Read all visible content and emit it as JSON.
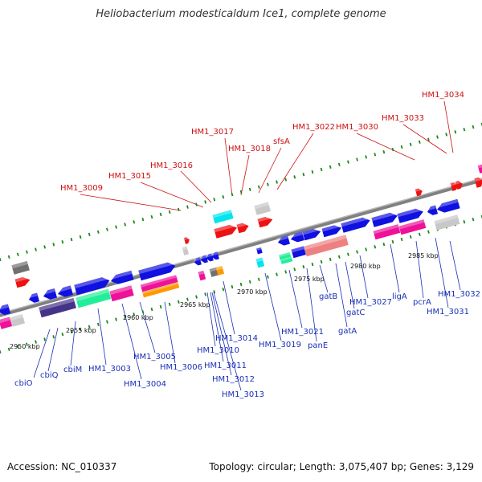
{
  "title": "Heliobacterium modesticaldum Ice1, complete genome",
  "footer": {
    "accession": "Accession: NC_010337",
    "summary": "Topology: circular; Length: 3,075,407 bp; Genes: 3,129"
  },
  "scale_labels": [
    "2950 kbp",
    "2955 kbp",
    "2960 kbp",
    "2965 kbp",
    "2970 kbp",
    "2975 kbp",
    "2980 kbp",
    "2985 kbp"
  ],
  "upper_gene_labels": [
    "HM1_3009",
    "HM1_3015",
    "HM1_3016",
    "HM1_3017",
    "HM1_3018",
    "sfsA",
    "HM1_3022",
    "HM1_3030",
    "HM1_3033",
    "HM1_3034"
  ],
  "lower_gene_labels": [
    "cbiO",
    "cbiQ",
    "cbiM",
    "HM1_3003",
    "HM1_3004",
    "HM1_3005",
    "HM1_3006",
    "HM1_3010",
    "HM1_3011",
    "HM1_3012",
    "HM1_3013",
    "HM1_3014",
    "HM1_3019",
    "HM1_3021",
    "panE",
    "gatB",
    "gatA",
    "gatC",
    "HM1_3027",
    "ligA",
    "pcrA",
    "HM1_3031",
    "HM1_3032"
  ],
  "colors": {
    "backbone": "#808080",
    "tick": "#1a8a1a",
    "label_upper": "#cc1111",
    "label_lower": "#1a2fb8",
    "gene_blue": "#1010e0",
    "gene_red": "#ee1111",
    "gene_magenta": "#ee1199",
    "gene_cyan": "#00e5ee",
    "gene_green": "#22ee99",
    "gene_salmon": "#ee8080",
    "gene_orange": "#ff9900",
    "gene_navy": "#443388",
    "gene_gray": "#c8c8c8",
    "gene_darkgray": "#707070"
  }
}
